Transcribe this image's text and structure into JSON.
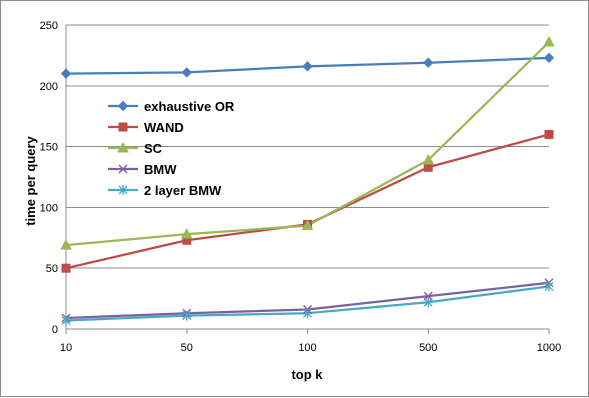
{
  "chart_data": {
    "type": "line",
    "title": "",
    "xlabel": "top k",
    "ylabel": "time per query",
    "categories": [
      "10",
      "50",
      "100",
      "500",
      "1000"
    ],
    "ylim": [
      0,
      250
    ],
    "yticks": [
      0,
      50,
      100,
      150,
      200,
      250
    ],
    "grid": "horizontal",
    "legend_position": "left",
    "series": [
      {
        "name": "exhaustive OR",
        "color": "#4a7ebb",
        "marker": "diamond",
        "values": [
          210,
          211,
          216,
          219,
          223
        ]
      },
      {
        "name": "WAND",
        "color": "#be4b48",
        "marker": "square",
        "values": [
          50,
          73,
          86,
          133,
          160
        ]
      },
      {
        "name": "SC",
        "color": "#98b954",
        "marker": "triangle",
        "values": [
          69,
          78,
          85,
          139,
          236
        ]
      },
      {
        "name": "BMW",
        "color": "#7d60a0",
        "marker": "x",
        "values": [
          9,
          13,
          16,
          27,
          38
        ]
      },
      {
        "name": "2 layer BMW",
        "color": "#46aac5",
        "marker": "star",
        "values": [
          7,
          11,
          13,
          22,
          35
        ]
      }
    ]
  }
}
